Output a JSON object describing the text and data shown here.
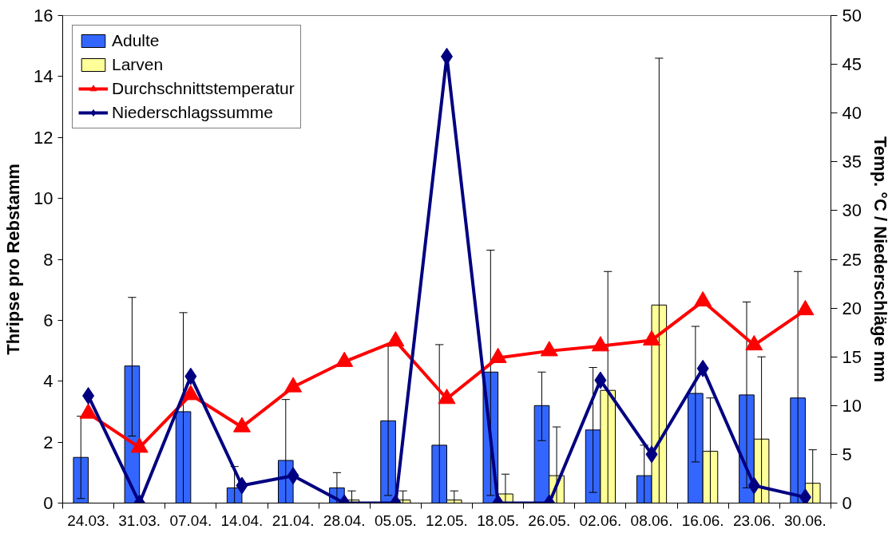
{
  "chart_data": {
    "type": "bar",
    "ylabel": "Thripse pro Rebstamm",
    "y2label": "Temp. °C / Niederschläge mm",
    "categories": [
      "24.03.",
      "31.03.",
      "07.04.",
      "14.04.",
      "21.04.",
      "28.04.",
      "05.05.",
      "12.05.",
      "18.05.",
      "26.05.",
      "02.06.",
      "08.06.",
      "16.06.",
      "23.06.",
      "30.06."
    ],
    "ylim": [
      0,
      16
    ],
    "yticks": [
      0,
      2,
      4,
      6,
      8,
      10,
      12,
      14,
      16
    ],
    "y2lim": [
      0,
      50
    ],
    "y2ticks": [
      0,
      5,
      10,
      15,
      20,
      25,
      30,
      35,
      40,
      45,
      50
    ],
    "grid": false,
    "legend": "top left",
    "series": [
      {
        "name": "Adulte",
        "color": "#3366ff",
        "values": [
          1.5,
          4.5,
          3.0,
          0.5,
          1.4,
          0.5,
          2.7,
          1.9,
          4.3,
          3.2,
          2.4,
          0.9,
          3.6,
          3.55,
          3.45
        ],
        "errors": [
          [
            0.15,
            2.85
          ],
          [
            2.2,
            6.75
          ],
          [
            0,
            6.25
          ],
          [
            0,
            1.2
          ],
          [
            0,
            3.4
          ],
          [
            0,
            1.0
          ],
          [
            0.25,
            5.15
          ],
          [
            0,
            5.2
          ],
          [
            0.25,
            8.3
          ],
          [
            2.05,
            4.3
          ],
          [
            0.35,
            4.45
          ],
          [
            0,
            1.9
          ],
          [
            1.35,
            5.8
          ],
          [
            0.5,
            6.6
          ],
          [
            0,
            7.6
          ]
        ]
      },
      {
        "name": "Larven",
        "color": "#ffff99",
        "values": [
          0,
          0,
          0,
          0,
          0,
          0.1,
          0.1,
          0.1,
          0.3,
          0.9,
          3.7,
          6.5,
          1.7,
          2.1,
          0.65
        ],
        "errors": [
          null,
          null,
          null,
          null,
          null,
          [
            0,
            0.4
          ],
          [
            0,
            0.4
          ],
          [
            0,
            0.4
          ],
          [
            0,
            0.95
          ],
          [
            0,
            2.5
          ],
          [
            0,
            7.6
          ],
          [
            0,
            14.6
          ],
          [
            0,
            3.45
          ],
          [
            0,
            4.8
          ],
          [
            0,
            1.75
          ]
        ]
      },
      {
        "name": "Durchschnittstemperatur",
        "type": "line",
        "axis": "y2",
        "color": "#ff0000",
        "marker": "triangle",
        "line_style": "solid",
        "values": [
          9.2,
          5.7,
          11.1,
          7.8,
          11.9,
          14.5,
          16.6,
          10.7,
          14.9,
          15.6,
          16.1,
          16.7,
          20.7,
          16.2,
          19.8
        ]
      },
      {
        "name": "Niederschlagssumme",
        "type": "line",
        "axis": "y2",
        "color": "#000080",
        "marker": "diamond",
        "line_style": "solid",
        "values": [
          11.0,
          0,
          13.0,
          1.8,
          2.8,
          0,
          0,
          45.8,
          0,
          0,
          12.6,
          5.0,
          13.8,
          1.8,
          0.6
        ]
      }
    ]
  }
}
